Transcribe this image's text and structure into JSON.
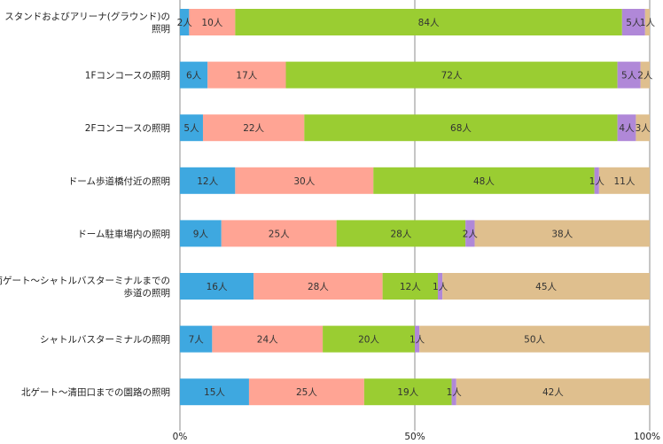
{
  "chart_data": {
    "type": "bar",
    "orientation": "horizontal",
    "stacked": "percent",
    "categories": [
      [
        "スタンドおよびアリーナ(グラウンド)の",
        "照明"
      ],
      [
        "1Fコンコースの照明"
      ],
      [
        "2Fコンコースの照明"
      ],
      [
        "ドーム歩道橋付近の照明"
      ],
      [
        "ドーム駐車場内の照明"
      ],
      [
        "南ゲート～シャトルバスターミナルまでの",
        "歩道の照明"
      ],
      [
        "シャトルバスターミナルの照明"
      ],
      [
        "北ゲート～清田口までの園路の照明"
      ]
    ],
    "series": [
      {
        "color": "#3ea8e0",
        "values": [
          2,
          6,
          5,
          12,
          9,
          16,
          7,
          15
        ]
      },
      {
        "color": "#ffa494",
        "values": [
          10,
          17,
          22,
          30,
          25,
          28,
          24,
          25
        ]
      },
      {
        "color": "#9acd32",
        "values": [
          84,
          72,
          68,
          48,
          28,
          12,
          20,
          19
        ]
      },
      {
        "color": "#b088d8",
        "values": [
          5,
          5,
          4,
          1,
          2,
          1,
          1,
          1
        ]
      },
      {
        "color": "#dfbf8e",
        "values": [
          1,
          2,
          3,
          11,
          38,
          45,
          50,
          42
        ]
      }
    ],
    "unit": "人",
    "xticks": [
      "0%",
      "50%",
      "100%"
    ],
    "xlim": [
      0,
      100
    ],
    "grid": "vertical at 0%, 50%, 100%",
    "legend": "none",
    "title": "",
    "xlabel": "",
    "ylabel": ""
  }
}
